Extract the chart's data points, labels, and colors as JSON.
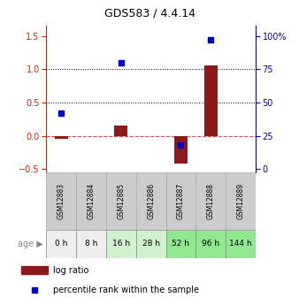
{
  "title": "GDS583 / 4.4.14",
  "samples": [
    "GSM12883",
    "GSM12884",
    "GSM12885",
    "GSM12886",
    "GSM12887",
    "GSM12888",
    "GSM12889"
  ],
  "ages": [
    "0 h",
    "8 h",
    "16 h",
    "28 h",
    "52 h",
    "96 h",
    "144 h"
  ],
  "log_ratio": [
    -0.05,
    0.0,
    0.15,
    0.0,
    -0.42,
    1.05,
    0.0
  ],
  "percentile_rank_pct": [
    42,
    0,
    80,
    0,
    18,
    97,
    0
  ],
  "left_yticks": [
    -0.5,
    0.0,
    0.5,
    1.0,
    1.5
  ],
  "right_yticks": [
    0,
    25,
    50,
    75,
    100
  ],
  "ylim": [
    -0.55,
    1.65
  ],
  "bar_color": "#8B1A1A",
  "dot_color": "#0000CD",
  "dotted_lines": [
    0.5,
    1.0
  ],
  "dashed_line_y": 0.0,
  "age_bg_colors": [
    "#eeeeee",
    "#eeeeee",
    "#d0f0d0",
    "#d0f0d0",
    "#90e890",
    "#90e890",
    "#90e890"
  ],
  "sample_bg_color": "#cccccc",
  "legend_items": [
    "log ratio",
    "percentile rank within the sample"
  ]
}
